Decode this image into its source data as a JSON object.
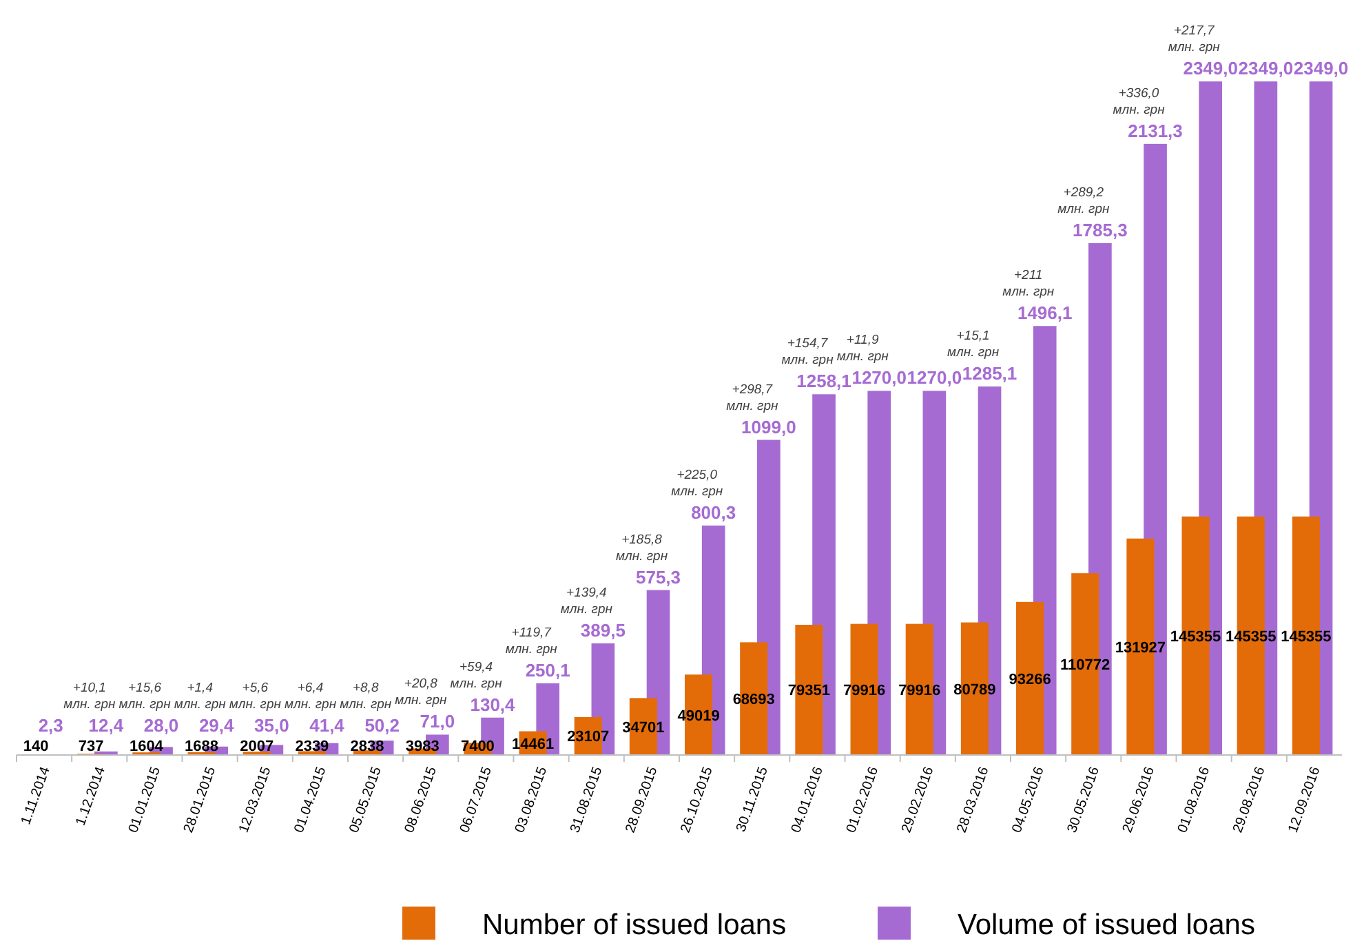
{
  "chart_data": {
    "type": "bar",
    "categories": [
      "1.11.2014",
      "1.12.2014",
      "01.01.2015",
      "28.01.2015",
      "12.03.2015",
      "01.04.2015",
      "05.05.2015",
      "08.06.2015",
      "06.07.2015",
      "03.08.2015",
      "31.08.2015",
      "28.09.2015",
      "26.10.2015",
      "30.11.2015",
      "04.01.2016",
      "01.02.2016",
      "29.02.2016",
      "28.03.2016",
      "04.05.2016",
      "30.05.2016",
      "29.06.2016",
      "01.08.2016",
      "29.08.2016",
      "12.09.2016"
    ],
    "series": [
      {
        "name": "Number of issued loans",
        "color": "#e36c09",
        "axis": "y2",
        "values": [
          140,
          737,
          1604,
          1688,
          2007,
          2339,
          2838,
          3983,
          7400,
          14461,
          23107,
          34701,
          49019,
          68693,
          79351,
          79916,
          79916,
          80789,
          93266,
          110772,
          131927,
          145355,
          145355,
          145355
        ],
        "value_labels": [
          "140",
          "737",
          "1604",
          "1688",
          "2007",
          "2339",
          "2838",
          "3983",
          "7400",
          "14461",
          "23107",
          "34701",
          "49019",
          "68693",
          "79351",
          "79916",
          "79916",
          "80789",
          "93266",
          "110772",
          "131927",
          "145355",
          "145355",
          "145355"
        ]
      },
      {
        "name": "Volume of issued loans",
        "color": "#a66bd3",
        "axis": "y",
        "values": [
          2.3,
          12.4,
          28.0,
          29.4,
          35.0,
          41.4,
          50.2,
          71.0,
          130.4,
          250.1,
          389.5,
          575.3,
          800.3,
          1099.0,
          1258.1,
          1270.0,
          1270.0,
          1285.1,
          1496.1,
          1785.3,
          2131.3,
          2349.0,
          2349.0,
          2349.0
        ],
        "value_labels": [
          "2,3",
          "12,4",
          "28,0",
          "29,4",
          "35,0",
          "41,4",
          "50,2",
          "71,0",
          "130,4",
          "250,1",
          "389,5",
          "575,3",
          "800,3",
          "1099,0",
          "1258,1",
          "1270,0",
          "1270,0",
          "1285,1",
          "1496,1",
          "1785,3",
          "2131,3",
          "2349,0",
          "2349,0",
          "2349,0"
        ]
      }
    ],
    "tick_labels": "x",
    "legend": "bottom",
    "grid": false,
    "annotations": [
      {
        "text": "+10,1 млн. грн",
        "x": "1.12.2014",
        "y": 12.4
      },
      {
        "text": "+15,6 млн. грн",
        "x": "01.01.2015",
        "y": 28.0
      },
      {
        "text": "+1,4 млн. грн",
        "x": "28.01.2015",
        "y": 29.4
      },
      {
        "text": "+5,6 млн. грн",
        "x": "12.03.2015",
        "y": 35.0
      },
      {
        "text": "+6,4 млн. грн",
        "x": "01.04.2015",
        "y": 41.4
      },
      {
        "text": "+8,8 млн. грн",
        "x": "05.05.2015",
        "y": 50.2
      },
      {
        "text": "+20,8 млн. грн",
        "x": "08.06.2015",
        "y": 71.0
      },
      {
        "text": "+59,4 млн. грн",
        "x": "06.07.2015",
        "y": 130.4
      },
      {
        "text": "+119,7 млн. грн",
        "x": "03.08.2015",
        "y": 250.1
      },
      {
        "text": "+139,4 млн. грн",
        "x": "31.08.2015",
        "y": 389.5
      },
      {
        "text": "+185,8 млн. грн",
        "x": "28.09.2015",
        "y": 575.3
      },
      {
        "text": "+225,0 млн. грн",
        "x": "26.10.2015",
        "y": 800.3
      },
      {
        "text": "+298,7 млн. грн",
        "x": "30.11.2015",
        "y": 1099.0
      },
      {
        "text": "+154,7 млн. грн",
        "x": "04.01.2016",
        "y": 1258.1
      },
      {
        "text": "+11,9 млн. грн",
        "x": "01.02.2016",
        "y": 1270.0
      },
      {
        "text": "+15,1 млн. грн",
        "x": "28.03.2016",
        "y": 1285.1
      },
      {
        "text": "+211 млн. грн",
        "x": "04.05.2016",
        "y": 1496.1
      },
      {
        "text": "+289,2 млн. грн",
        "x": "30.05.2016",
        "y": 1785.3
      },
      {
        "text": "+336,0 млн. грн",
        "x": "29.06.2016",
        "y": 2131.3
      },
      {
        "text": "+217,7 млн. грн",
        "x": "01.08.2016",
        "y": 2349.0
      }
    ]
  }
}
